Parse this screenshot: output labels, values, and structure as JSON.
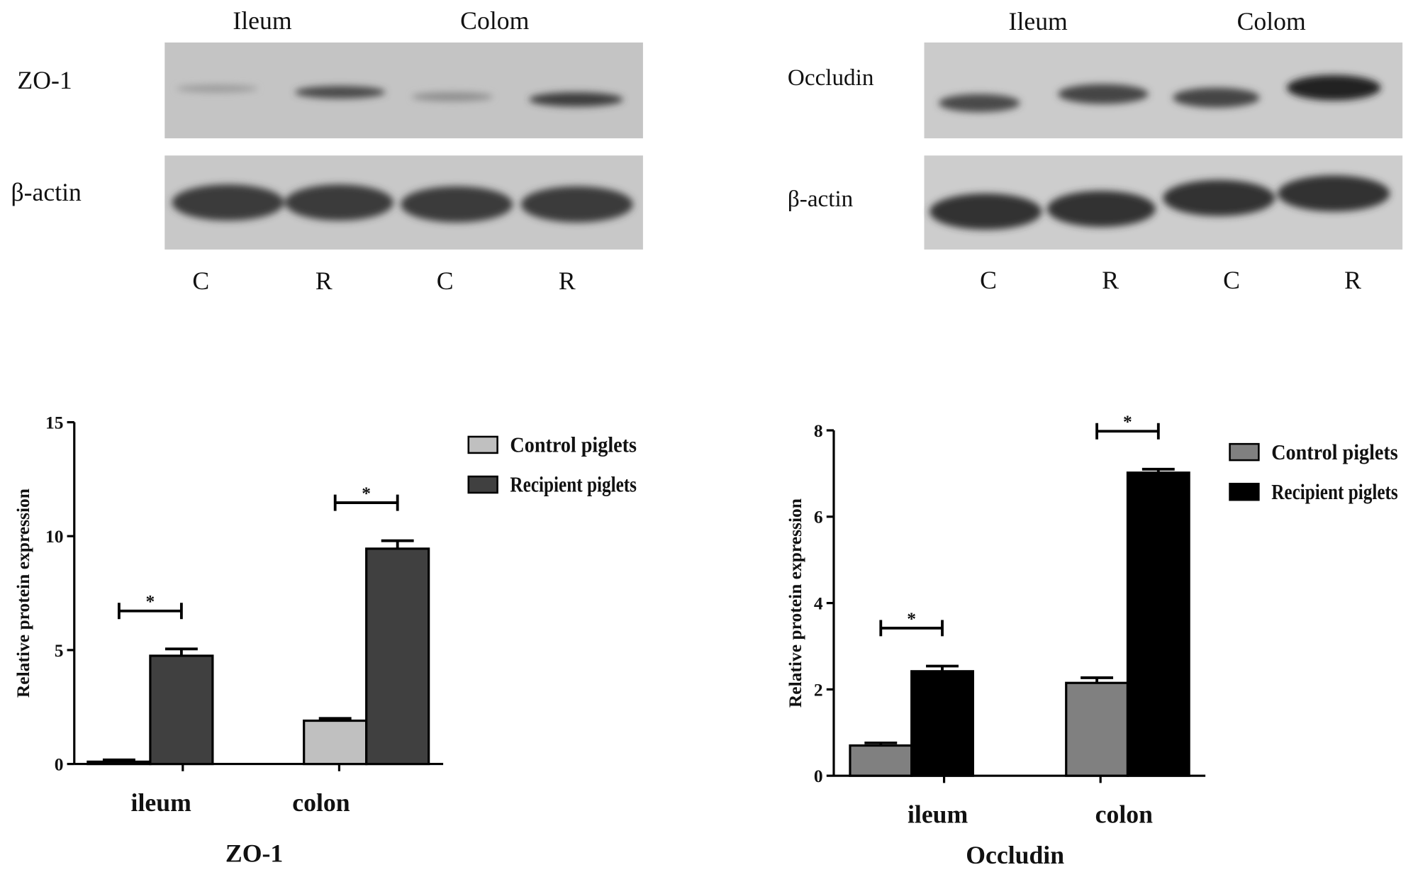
{
  "blots": [
    {
      "headers": [
        "Ileum",
        "Colom"
      ],
      "protein": "ZO-1",
      "control": "β-actin",
      "lanes": [
        "C",
        "R",
        "C",
        "R"
      ]
    },
    {
      "headers": [
        "Ileum",
        "Colom"
      ],
      "protein": "Occludin",
      "control": "β-actin",
      "lanes": [
        "C",
        "R",
        "C",
        "R"
      ]
    }
  ],
  "chart_data": [
    {
      "type": "bar",
      "title": "ZO-1",
      "y_label": "Relative protein expression",
      "categories": [
        "ileum",
        "colon"
      ],
      "series": [
        {
          "name": "Control piglets",
          "color": "#c0c0c0",
          "values": [
            0.1,
            1.9
          ],
          "errors": [
            0.08,
            0.1
          ]
        },
        {
          "name": "Recipient piglets",
          "color": "#404040",
          "values": [
            4.75,
            9.45
          ],
          "errors": [
            0.3,
            0.35
          ]
        }
      ],
      "significance": [
        "*",
        "*"
      ],
      "ylim": [
        0,
        15
      ],
      "yticks": [
        0,
        5,
        10,
        15
      ],
      "legend": "upper right"
    },
    {
      "type": "bar",
      "title": "Occludin",
      "y_label": "Relative protein expression",
      "categories": [
        "ileum",
        "colon"
      ],
      "series": [
        {
          "name": "Control piglets",
          "color": "#808080",
          "values": [
            0.7,
            2.15
          ],
          "errors": [
            0.06,
            0.12
          ]
        },
        {
          "name": "Recipient piglets",
          "color": "#000000",
          "values": [
            2.42,
            7.02
          ],
          "errors": [
            0.12,
            0.08
          ]
        }
      ],
      "significance": [
        "*",
        "*"
      ],
      "ylim": [
        0,
        8
      ],
      "yticks": [
        0,
        2,
        4,
        6,
        8
      ],
      "legend": "upper right"
    }
  ]
}
